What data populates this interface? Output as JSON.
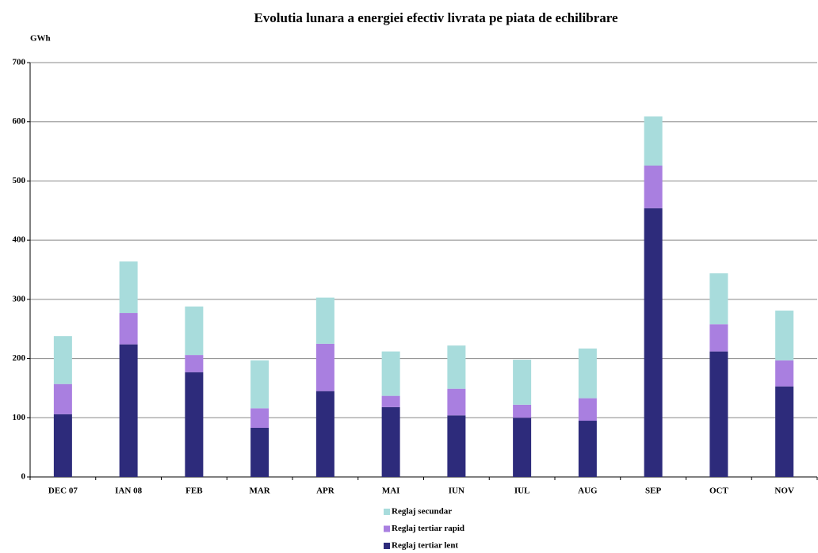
{
  "chart_data": {
    "type": "stacked_bar",
    "title": "Evolutia lunara a energiei efectiv livrata pe piata de echilibrare",
    "y_label": "GWh",
    "categories": [
      "DEC 07",
      "IAN 08",
      "FEB",
      "MAR",
      "APR",
      "MAI",
      "IUN",
      "IUL",
      "AUG",
      "SEP",
      "OCT",
      "NOV"
    ],
    "series": [
      {
        "name": "Reglaj tertiar lent",
        "color": "#2d2b7b",
        "values": [
          106,
          224,
          177,
          83,
          145,
          118,
          104,
          100,
          95,
          454,
          212,
          153
        ]
      },
      {
        "name": "Reglaj tertiar rapid",
        "color": "#a97fe0",
        "values": [
          51,
          53,
          29,
          33,
          80,
          19,
          45,
          22,
          38,
          72,
          46,
          44
        ]
      },
      {
        "name": "Reglaj secundar",
        "color": "#a8dcdc",
        "values": [
          81,
          87,
          82,
          81,
          78,
          75,
          73,
          76,
          84,
          83,
          86,
          84
        ]
      }
    ],
    "ylim": [
      0,
      700
    ],
    "yticks": [
      0,
      100,
      200,
      300,
      400,
      500,
      600,
      700
    ],
    "grid": true
  }
}
